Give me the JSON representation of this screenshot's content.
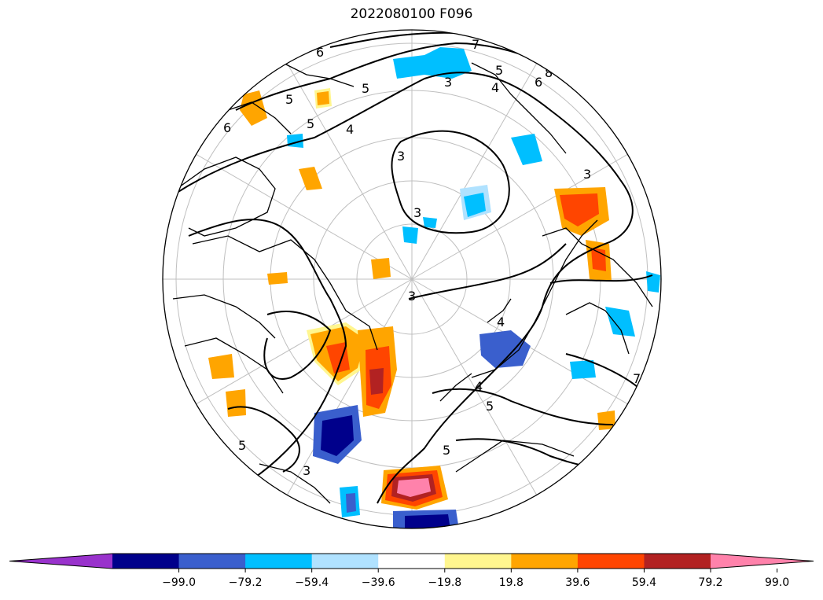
{
  "title": "2022080100 F096",
  "map": {
    "projection": "north-polar-stereographic",
    "graticule": true,
    "contour_labels": [
      "6",
      "5",
      "5",
      "5",
      "5",
      "4",
      "4",
      "3",
      "3",
      "3",
      "3",
      "3",
      "5",
      "6",
      "7",
      "8",
      "3",
      "4",
      "4",
      "5",
      "5",
      "6",
      "7"
    ]
  },
  "colorbar": {
    "orientation": "horizontal",
    "extend": "both",
    "colors": [
      "#9932CC",
      "#00008B",
      "#3A5FCD",
      "#00BFFF",
      "#B0E2FF",
      "#FFFFFF",
      "#FFF68F",
      "#FFA500",
      "#FF4500",
      "#B22222",
      "#FF82AB"
    ],
    "tick_labels": [
      "−99.0",
      "−79.2",
      "−59.4",
      "−39.6",
      "−19.8",
      "19.8",
      "39.6",
      "59.4",
      "79.2",
      "99.0"
    ]
  }
}
